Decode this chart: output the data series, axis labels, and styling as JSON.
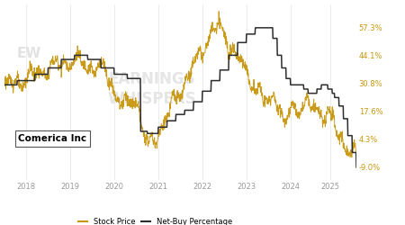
{
  "title": "Comerica Inc",
  "stock_color": "#C8960C",
  "netbuy_color": "#2d2d2d",
  "background_color": "#FFFFFF",
  "right_labels": [
    "57.3%",
    "44.1%",
    "30.8%",
    "17.6%",
    "4.3%",
    "-9.0%"
  ],
  "right_ticks": [
    57.3,
    44.1,
    30.8,
    17.6,
    4.3,
    -9.0
  ],
  "x_tick_positions": [
    0.5,
    1.5,
    2.5,
    3.5,
    4.5,
    5.5,
    6.5,
    7.4
  ],
  "x_tick_labels": [
    "2018",
    "2019",
    "2020",
    "2021",
    "2022",
    "2023",
    "2024",
    "2025"
  ],
  "legend_stock": "Stock Price",
  "legend_netbuy": "Net-Buy Percentage",
  "ylim_stock": [
    20,
    105
  ],
  "ylim_netbuy": [
    -15,
    68
  ],
  "figsize": [
    4.5,
    2.5
  ],
  "dpi": 100
}
